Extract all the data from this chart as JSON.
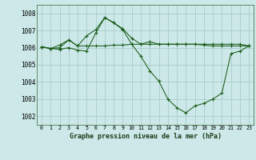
{
  "background_color": "#cce8e8",
  "grid_color": "#aacccc",
  "line_color": "#1a5c1a",
  "title": "Graphe pression niveau de la mer (hPa)",
  "xlim": [
    -0.5,
    23.5
  ],
  "ylim": [
    1001.5,
    1008.5
  ],
  "yticks": [
    1002,
    1003,
    1004,
    1005,
    1006,
    1007,
    1008
  ],
  "xticks": [
    0,
    1,
    2,
    3,
    4,
    5,
    6,
    7,
    8,
    9,
    10,
    11,
    12,
    13,
    14,
    15,
    16,
    17,
    18,
    19,
    20,
    21,
    22,
    23
  ],
  "series": [
    {
      "x": [
        0,
        1,
        2,
        3,
        4,
        5,
        6,
        7,
        8,
        9,
        10,
        11,
        12,
        13,
        14,
        15,
        16,
        17,
        18,
        19,
        20,
        21,
        22,
        23
      ],
      "y": [
        1006.05,
        1005.95,
        1006.0,
        1006.45,
        1006.1,
        1006.1,
        1006.1,
        1006.1,
        1006.15,
        1006.15,
        1006.2,
        1006.2,
        1006.2,
        1006.2,
        1006.2,
        1006.2,
        1006.2,
        1006.2,
        1006.2,
        1006.2,
        1006.2,
        1006.2,
        1006.2,
        1006.1
      ]
    },
    {
      "x": [
        0,
        1,
        2,
        3,
        4,
        5,
        6,
        7,
        8,
        9,
        10,
        11,
        12,
        13,
        14,
        15,
        16,
        17,
        18,
        19,
        20,
        21,
        22,
        23
      ],
      "y": [
        1006.05,
        1005.95,
        1006.15,
        1006.45,
        1006.1,
        1006.7,
        1007.05,
        1007.75,
        1007.45,
        1007.1,
        1006.55,
        1006.2,
        1006.35,
        1006.2,
        1006.2,
        1006.2,
        1006.2,
        1006.2,
        1006.15,
        1006.1,
        1006.1,
        1006.1,
        1006.1,
        1006.1
      ]
    },
    {
      "x": [
        0,
        1,
        2,
        3,
        4,
        5,
        6,
        7,
        8,
        9,
        10,
        11,
        12,
        13,
        14,
        15,
        16,
        17,
        18,
        19,
        20,
        21,
        22,
        23
      ],
      "y": [
        1006.05,
        1005.95,
        1005.9,
        1006.0,
        1005.85,
        1005.8,
        1006.85,
        1007.75,
        1007.45,
        1007.05,
        1006.2,
        1005.5,
        1004.65,
        1004.05,
        1003.0,
        1002.5,
        1002.2,
        1002.6,
        1002.75,
        1003.0,
        1003.35,
        1005.65,
        1005.8,
        1006.1
      ]
    }
  ]
}
